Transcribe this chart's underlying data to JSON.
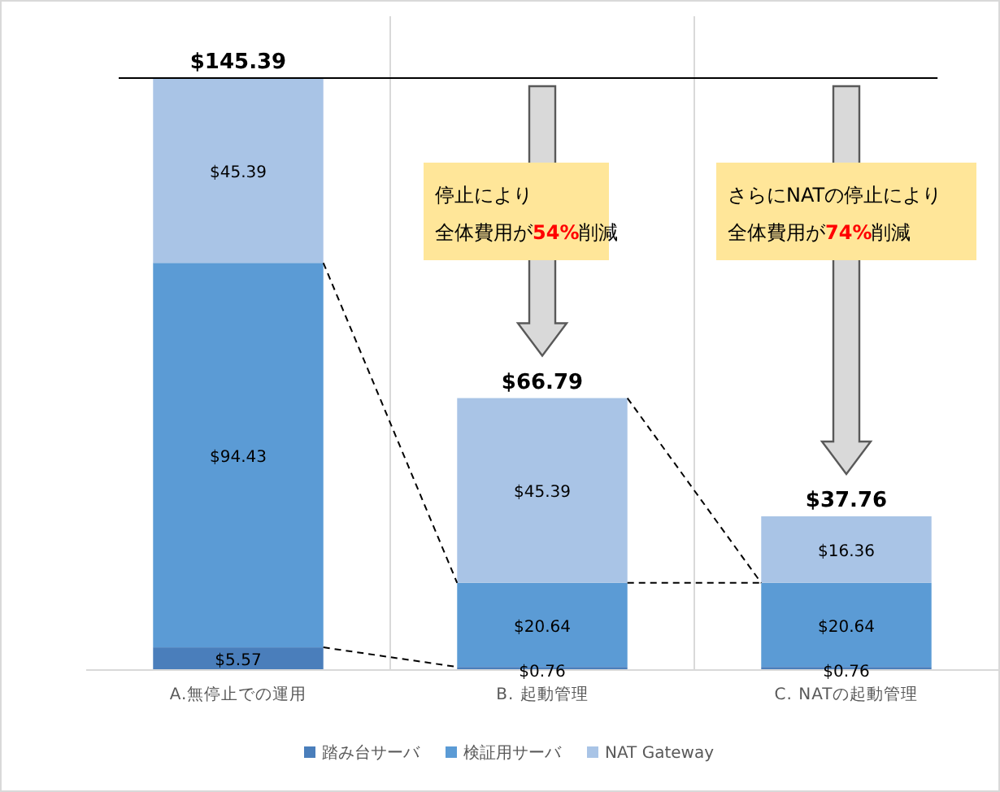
{
  "chart_data": {
    "type": "bar",
    "stacked": true,
    "categories": [
      "A.無停止での運用",
      "B. 起動管理",
      "C. NATの起動管理"
    ],
    "series": [
      {
        "name": "踏み台サーバ",
        "color": "#4a7ebb",
        "values": [
          5.57,
          0.76,
          0.76
        ],
        "value_labels": [
          "$5.57",
          "$0.76",
          "$0.76"
        ]
      },
      {
        "name": "検証用サーバ",
        "color": "#5b9bd5",
        "values": [
          94.43,
          20.64,
          20.64
        ],
        "value_labels": [
          "$94.43",
          "$20.64",
          "$20.64"
        ]
      },
      {
        "name": "NAT Gateway",
        "color": "#a9c4e6",
        "values": [
          45.39,
          45.39,
          16.36
        ],
        "value_labels": [
          "$45.39",
          "$45.39",
          "$16.36"
        ]
      }
    ],
    "totals": [
      "$145.39",
      "$66.79",
      "$37.76"
    ],
    "ref_lines": [
      {
        "axis": "y",
        "value": 145.39,
        "color": "#000000"
      }
    ],
    "annotations": [
      "停止により",
      "全体費用が**54%**削減",
      "さらにNATの停止により",
      "全体費用が**74%**削減"
    ],
    "grid": "x",
    "legend": "bottom"
  }
}
